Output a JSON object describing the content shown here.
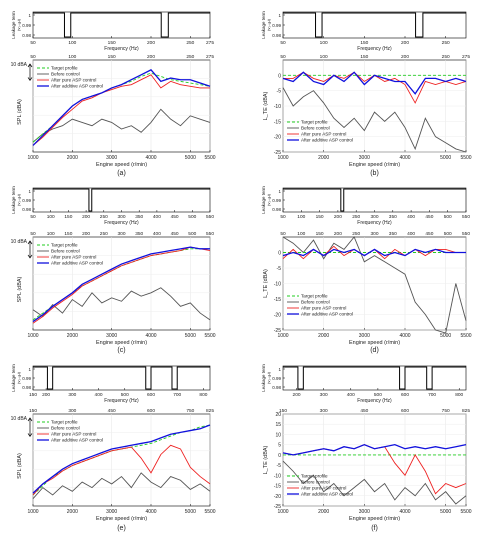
{
  "figure": {
    "leak_ylabel": "Leakage term",
    "leak_ylabel2": "(v₁₋ᵤμ)",
    "leak_yticks": [
      "1",
      "0.99",
      "0.98"
    ],
    "leak_xlabel": "Frequency (Hz)",
    "engine_xlabel": "Engine speed (r/min)",
    "engine_xticks": [
      "1000",
      "2000",
      "3000",
      "4000",
      "5000",
      "5500"
    ],
    "spl_ylabel": "SPL (dBA)",
    "scale_bar": "10 dBA",
    "lte_ylabel": "L_TE (dBA)",
    "legend": [
      "Target profile",
      "Before control",
      "After pure ASP control",
      "After additive ASP control"
    ],
    "colors": {
      "target": "#22cc22",
      "before": "#555555",
      "pure": "#ee2222",
      "additive": "#1111dd"
    },
    "panel_captions": [
      "(a)",
      "(b)",
      "(c)",
      "(d)",
      "(e)",
      "(f)"
    ]
  },
  "chart_data": [
    {
      "panel": "(a)",
      "type": "line",
      "leakage": {
        "x_top": [
          50,
          100,
          150,
          200,
          250,
          275
        ],
        "x_bottom": [
          50,
          100,
          150,
          200,
          250,
          275
        ],
        "dips": [
          [
            90,
            98
          ],
          [
            213,
            222
          ]
        ],
        "ylim": [
          0.98,
          1.0
        ]
      },
      "main": {
        "ylabel": "SPL (dBA)",
        "scale": "10 dBA",
        "xlim": [
          1000,
          5500
        ],
        "x": [
          1000,
          1250,
          1500,
          1750,
          2000,
          2250,
          2500,
          2750,
          3000,
          3250,
          3500,
          3750,
          4000,
          4250,
          4500,
          4750,
          5000,
          5250,
          5500
        ],
        "series": [
          {
            "name": "Target profile",
            "values": [
              0,
              5,
              10,
              16,
              22,
              26,
              28,
              30,
              33,
              35,
              37,
              40,
              42,
              40,
              38,
              37,
              36,
              35,
              34
            ]
          },
          {
            "name": "Before control",
            "values": [
              0,
              5,
              8,
              10,
              14,
              12,
              10,
              14,
              12,
              8,
              10,
              6,
              12,
              20,
              14,
              10,
              16,
              14,
              12
            ]
          },
          {
            "name": "After pure ASP control",
            "values": [
              -2,
              3,
              9,
              15,
              20,
              25,
              27,
              30,
              32,
              34,
              35,
              38,
              41,
              33,
              37,
              35,
              34,
              33,
              33
            ]
          },
          {
            "name": "After additive ASP control",
            "values": [
              -2,
              4,
              10,
              16,
              22,
              26,
              28,
              30,
              33,
              35,
              38,
              41,
              44,
              37,
              39,
              38,
              38,
              36,
              34
            ]
          }
        ]
      }
    },
    {
      "panel": "(b)",
      "type": "line",
      "leakage": {
        "x_top": [
          50,
          100,
          150,
          200,
          250,
          275
        ],
        "x_bottom": [
          50,
          100,
          150,
          200,
          250
        ],
        "dips": [
          [
            90,
            98
          ],
          [
            213,
            222
          ]
        ],
        "ylim": [
          0.98,
          1.0
        ]
      },
      "main": {
        "ylabel": "L_TE (dBA)",
        "xlim": [
          1000,
          5500
        ],
        "ylim": [
          -25,
          5
        ],
        "yticks": [
          0,
          -5,
          -10,
          -15,
          -20,
          -25
        ],
        "x": [
          1000,
          1250,
          1500,
          1750,
          2000,
          2250,
          2500,
          2750,
          3000,
          3250,
          3500,
          3750,
          4000,
          4250,
          4500,
          4750,
          5000,
          5250,
          5500
        ],
        "series": [
          {
            "name": "Target profile",
            "values": [
              0,
              0,
              0,
              0,
              0,
              0,
              0,
              0,
              0,
              0,
              0,
              0,
              0,
              0,
              0,
              0,
              0,
              0,
              0
            ]
          },
          {
            "name": "Before control",
            "values": [
              -4,
              -10,
              -7,
              -5,
              -9,
              -14,
              -17,
              -14,
              -18,
              -12,
              -15,
              -12,
              -17,
              -24,
              -14,
              -20,
              -22,
              -24,
              -25
            ]
          },
          {
            "name": "After pure ASP control",
            "values": [
              -1,
              -1,
              1,
              -1,
              -2,
              0,
              -1,
              1,
              -2,
              0,
              -2,
              -1,
              -3,
              -9,
              -2,
              -3,
              -2,
              -3,
              -2
            ]
          },
          {
            "name": "After additive ASP control",
            "values": [
              -1,
              -2,
              1,
              -2,
              -3,
              0,
              -2,
              1,
              -3,
              0,
              -1,
              -2,
              -2,
              -6,
              -1,
              -1,
              -2,
              -1,
              -2
            ]
          }
        ]
      }
    },
    {
      "panel": "(c)",
      "type": "line",
      "leakage": {
        "x_top": [
          50,
          100,
          150,
          200,
          250,
          300,
          350,
          400,
          450,
          500,
          550
        ],
        "x_bottom": [
          50,
          100,
          150,
          200,
          250,
          300,
          350,
          400,
          450,
          500,
          550
        ],
        "dips": [
          [
            208,
            216
          ]
        ],
        "ylim": [
          0.98,
          1.0
        ]
      },
      "main": {
        "ylabel": "SPL (dBA)",
        "scale": "10 dBA",
        "xlim": [
          1000,
          5500
        ],
        "x": [
          1000,
          1250,
          1500,
          1750,
          2000,
          2250,
          2500,
          2750,
          3000,
          3250,
          3500,
          3750,
          4000,
          4250,
          4500,
          4750,
          5000,
          5250,
          5500
        ],
        "series": [
          {
            "name": "Target profile",
            "values": [
              0,
              4,
              8,
              12,
              16,
              20,
              23,
              26,
              29,
              32,
              34,
              36,
              38,
              39,
              40,
              41,
              42,
              42,
              42
            ]
          },
          {
            "name": "Before control",
            "values": [
              6,
              2,
              9,
              4,
              12,
              8,
              16,
              10,
              13,
              11,
              17,
              14,
              16,
              19,
              14,
              8,
              10,
              4,
              0
            ]
          },
          {
            "name": "After pure ASP control",
            "values": [
              -2,
              2,
              7,
              11,
              15,
              20,
              23,
              26,
              29,
              32,
              34,
              36,
              38,
              39,
              40,
              41,
              43,
              42,
              41
            ]
          },
          {
            "name": "After additive ASP control",
            "values": [
              -1,
              3,
              8,
              12,
              16,
              21,
              24,
              27,
              30,
              33,
              35,
              37,
              39,
              40,
              41,
              42,
              43,
              42,
              42
            ]
          }
        ]
      }
    },
    {
      "panel": "(d)",
      "type": "line",
      "leakage": {
        "x_top": [
          50,
          100,
          150,
          200,
          250,
          300,
          350,
          400,
          450,
          500,
          550
        ],
        "x_bottom": [
          50,
          100,
          150,
          200,
          250,
          300,
          350,
          400,
          450,
          500,
          550
        ],
        "dips": [
          [
            208,
            216
          ]
        ],
        "ylim": [
          0.98,
          1.0
        ]
      },
      "main": {
        "ylabel": "L_TE (dBA)",
        "xlim": [
          1000,
          5500
        ],
        "ylim": [
          -25,
          5
        ],
        "yticks": [
          0,
          -5,
          -10,
          -15,
          -20,
          -25
        ],
        "x": [
          1000,
          1250,
          1500,
          1750,
          2000,
          2250,
          2500,
          2750,
          3000,
          3250,
          3500,
          3750,
          4000,
          4250,
          4500,
          4750,
          5000,
          5250,
          5500
        ],
        "series": [
          {
            "name": "Target profile",
            "values": [
              0,
              0,
              0,
              0,
              0,
              0,
              0,
              0,
              0,
              0,
              0,
              0,
              0,
              0,
              0,
              0,
              0,
              0,
              0
            ]
          },
          {
            "name": "Before control",
            "values": [
              5,
              3,
              0,
              4,
              -2,
              3,
              1,
              5,
              -3,
              -1,
              -3,
              -5,
              -7,
              -16,
              -20,
              -25,
              -26,
              -10,
              -22
            ]
          },
          {
            "name": "After pure ASP control",
            "values": [
              -2,
              1,
              -2,
              1,
              -1,
              2,
              -1,
              1,
              -1,
              1,
              -2,
              1,
              -1,
              1,
              -1,
              1,
              1,
              0,
              0
            ]
          },
          {
            "name": "After additive ASP control",
            "values": [
              -1,
              0,
              -1,
              1,
              -1,
              1,
              0,
              1,
              -1,
              1,
              -1,
              0,
              -1,
              1,
              0,
              1,
              0,
              0,
              0
            ]
          }
        ]
      }
    },
    {
      "panel": "(e)",
      "type": "line",
      "leakage": {
        "x_top": [
          150,
          300,
          450,
          600,
          750,
          825
        ],
        "x_bottom": [
          150,
          200,
          300,
          400,
          500,
          600,
          700,
          800
        ],
        "dips": [
          [
            205,
            225
          ],
          [
            580,
            600
          ],
          [
            680,
            700
          ]
        ],
        "ylim": [
          0.98,
          1.0
        ]
      },
      "main": {
        "ylabel": "SPL (dBA)",
        "scale": "10 dBA",
        "xlim": [
          1000,
          5500
        ],
        "x": [
          1000,
          1250,
          1500,
          1750,
          2000,
          2250,
          2500,
          2750,
          3000,
          3250,
          3500,
          3750,
          4000,
          4250,
          4500,
          4750,
          5000,
          5250,
          5500
        ],
        "series": [
          {
            "name": "Target profile",
            "values": [
              0,
              5,
              10,
              13,
              16,
              18,
              20,
              22,
              24,
              25,
              26,
              27,
              28,
              30,
              32,
              34,
              35,
              37,
              38
            ]
          },
          {
            "name": "Before control",
            "values": [
              -2,
              4,
              0,
              5,
              2,
              7,
              4,
              9,
              6,
              10,
              4,
              12,
              7,
              4,
              10,
              8,
              3,
              6,
              2
            ]
          },
          {
            "name": "After pure ASP control",
            "values": [
              0,
              6,
              9,
              13,
              16,
              18,
              20,
              22,
              24,
              25,
              26,
              20,
              12,
              22,
              27,
              25,
              15,
              10,
              6
            ]
          },
          {
            "name": "After additive ASP control",
            "values": [
              1,
              6,
              10,
              14,
              17,
              19,
              21,
              23,
              25,
              26,
              27,
              28,
              29,
              31,
              33,
              34,
              35,
              36,
              38
            ]
          }
        ]
      }
    },
    {
      "panel": "(f)",
      "type": "line",
      "leakage": {
        "x_top": [
          150,
          300,
          450,
          600,
          750,
          825
        ],
        "x_bottom": [
          200,
          300,
          400,
          500,
          600,
          700,
          800
        ],
        "dips": [
          [
            205,
            225
          ],
          [
            580,
            600
          ],
          [
            680,
            700
          ]
        ],
        "ylim": [
          0.98,
          1.0
        ]
      },
      "main": {
        "ylabel": "L_TE (dBA)",
        "xlim": [
          1000,
          5500
        ],
        "ylim": [
          -25,
          20
        ],
        "yticks": [
          20,
          15,
          10,
          5,
          0,
          -5,
          -10,
          -15,
          -20,
          -25
        ],
        "x": [
          1000,
          1250,
          1500,
          1750,
          2000,
          2250,
          2500,
          2750,
          3000,
          3250,
          3500,
          3750,
          4000,
          4250,
          4500,
          4750,
          5000,
          5250,
          5500
        ],
        "series": [
          {
            "name": "Target profile",
            "values": [
              0,
              0,
              0,
              0,
              0,
              0,
              0,
              0,
              0,
              0,
              0,
              0,
              0,
              0,
              0,
              0,
              0,
              0,
              0
            ]
          },
          {
            "name": "Before control",
            "values": [
              -3,
              -8,
              -14,
              -10,
              -18,
              -14,
              -20,
              -16,
              -12,
              -18,
              -14,
              -22,
              -16,
              -20,
              -14,
              -22,
              -18,
              -24,
              -20
            ]
          },
          {
            "name": "After pure ASP control",
            "values": [
              1,
              0,
              1,
              2,
              3,
              2,
              4,
              3,
              5,
              3,
              4,
              -4,
              -10,
              0,
              -8,
              -19,
              -14,
              -16,
              -14
            ]
          },
          {
            "name": "After additive ASP control",
            "values": [
              1,
              0,
              1,
              2,
              3,
              2,
              4,
              3,
              5,
              3,
              4,
              5,
              3,
              4,
              3,
              4,
              3,
              4,
              5
            ]
          }
        ]
      }
    }
  ]
}
